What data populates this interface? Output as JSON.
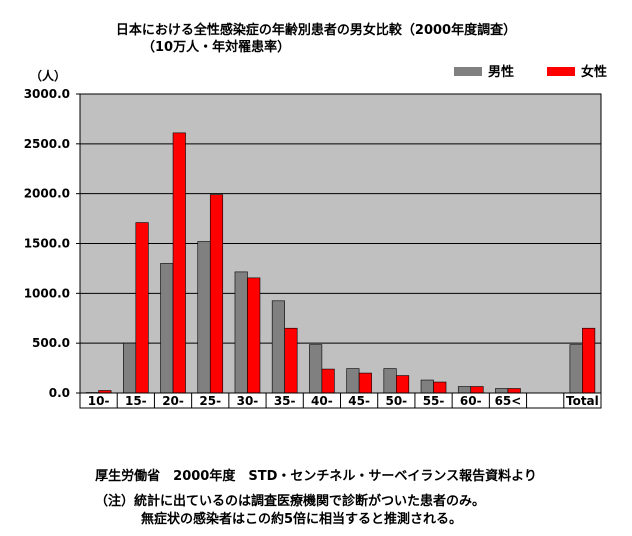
{
  "chart_data": {
    "type": "bar",
    "title": "日本における全性感染症の年齢別患者の男女比較（2000年度調査）",
    "subtitle": "（10万人・年対罹患率）",
    "ylabel": "（人）",
    "xlabel": "",
    "ylim": [
      0,
      3000
    ],
    "yticks": [
      "0.0",
      "500.0",
      "1000.0",
      "1500.0",
      "2000.0",
      "2500.0",
      "3000.0"
    ],
    "ytick_values": [
      0,
      500,
      1000,
      1500,
      2000,
      2500,
      3000
    ],
    "categories": [
      "10-",
      "15-",
      "20-",
      "25-",
      "30-",
      "35-",
      "40-",
      "45-",
      "50-",
      "55-",
      "60-",
      "65<",
      "",
      "Total"
    ],
    "series": [
      {
        "name": "男性",
        "color": "#808080",
        "values": [
          5,
          500,
          1300,
          1520,
          1215,
          925,
          485,
          245,
          245,
          130,
          65,
          45,
          null,
          485
        ]
      },
      {
        "name": "女性",
        "color": "#ff0000",
        "values": [
          25,
          1710,
          2610,
          1990,
          1155,
          650,
          240,
          200,
          175,
          110,
          65,
          45,
          null,
          650
        ]
      }
    ],
    "grid": true,
    "legend": "top-right",
    "plot_background": "#c0c0c0"
  },
  "source_text": "厚生労働省　2000年度　STD・センチネル・サーベイランス報告資料より",
  "note_line1": "（注）統計に出ているのは調査医療機関で診断がついた患者のみ。",
  "note_line2": "無症状の感染者はこの約5倍に相当すると推測される。"
}
